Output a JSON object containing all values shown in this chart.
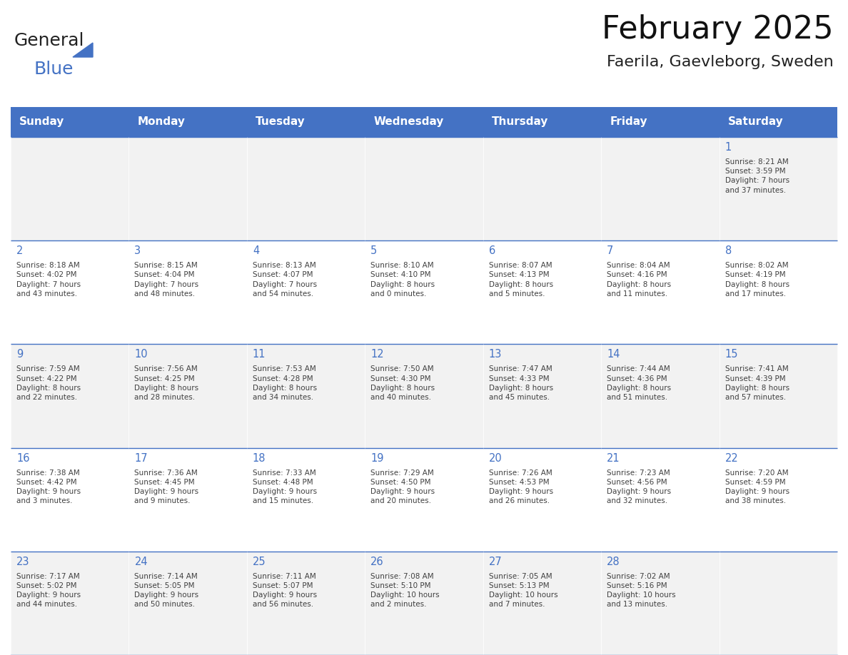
{
  "title": "February 2025",
  "subtitle": "Faerila, Gaevleborg, Sweden",
  "header_color": "#4472C4",
  "header_text_color": "#FFFFFF",
  "header_days": [
    "Sunday",
    "Monday",
    "Tuesday",
    "Wednesday",
    "Thursday",
    "Friday",
    "Saturday"
  ],
  "bg_color": "#FFFFFF",
  "cell_bg_even": "#F2F2F2",
  "cell_bg_odd": "#FFFFFF",
  "line_color": "#4472C4",
  "day_number_color": "#4472C4",
  "text_color": "#404040",
  "logo_general_color": "#222222",
  "logo_blue_color": "#4472C4",
  "weeks": [
    [
      {
        "day": null,
        "info": null
      },
      {
        "day": null,
        "info": null
      },
      {
        "day": null,
        "info": null
      },
      {
        "day": null,
        "info": null
      },
      {
        "day": null,
        "info": null
      },
      {
        "day": null,
        "info": null
      },
      {
        "day": 1,
        "info": "Sunrise: 8:21 AM\nSunset: 3:59 PM\nDaylight: 7 hours\nand 37 minutes."
      }
    ],
    [
      {
        "day": 2,
        "info": "Sunrise: 8:18 AM\nSunset: 4:02 PM\nDaylight: 7 hours\nand 43 minutes."
      },
      {
        "day": 3,
        "info": "Sunrise: 8:15 AM\nSunset: 4:04 PM\nDaylight: 7 hours\nand 48 minutes."
      },
      {
        "day": 4,
        "info": "Sunrise: 8:13 AM\nSunset: 4:07 PM\nDaylight: 7 hours\nand 54 minutes."
      },
      {
        "day": 5,
        "info": "Sunrise: 8:10 AM\nSunset: 4:10 PM\nDaylight: 8 hours\nand 0 minutes."
      },
      {
        "day": 6,
        "info": "Sunrise: 8:07 AM\nSunset: 4:13 PM\nDaylight: 8 hours\nand 5 minutes."
      },
      {
        "day": 7,
        "info": "Sunrise: 8:04 AM\nSunset: 4:16 PM\nDaylight: 8 hours\nand 11 minutes."
      },
      {
        "day": 8,
        "info": "Sunrise: 8:02 AM\nSunset: 4:19 PM\nDaylight: 8 hours\nand 17 minutes."
      }
    ],
    [
      {
        "day": 9,
        "info": "Sunrise: 7:59 AM\nSunset: 4:22 PM\nDaylight: 8 hours\nand 22 minutes."
      },
      {
        "day": 10,
        "info": "Sunrise: 7:56 AM\nSunset: 4:25 PM\nDaylight: 8 hours\nand 28 minutes."
      },
      {
        "day": 11,
        "info": "Sunrise: 7:53 AM\nSunset: 4:28 PM\nDaylight: 8 hours\nand 34 minutes."
      },
      {
        "day": 12,
        "info": "Sunrise: 7:50 AM\nSunset: 4:30 PM\nDaylight: 8 hours\nand 40 minutes."
      },
      {
        "day": 13,
        "info": "Sunrise: 7:47 AM\nSunset: 4:33 PM\nDaylight: 8 hours\nand 45 minutes."
      },
      {
        "day": 14,
        "info": "Sunrise: 7:44 AM\nSunset: 4:36 PM\nDaylight: 8 hours\nand 51 minutes."
      },
      {
        "day": 15,
        "info": "Sunrise: 7:41 AM\nSunset: 4:39 PM\nDaylight: 8 hours\nand 57 minutes."
      }
    ],
    [
      {
        "day": 16,
        "info": "Sunrise: 7:38 AM\nSunset: 4:42 PM\nDaylight: 9 hours\nand 3 minutes."
      },
      {
        "day": 17,
        "info": "Sunrise: 7:36 AM\nSunset: 4:45 PM\nDaylight: 9 hours\nand 9 minutes."
      },
      {
        "day": 18,
        "info": "Sunrise: 7:33 AM\nSunset: 4:48 PM\nDaylight: 9 hours\nand 15 minutes."
      },
      {
        "day": 19,
        "info": "Sunrise: 7:29 AM\nSunset: 4:50 PM\nDaylight: 9 hours\nand 20 minutes."
      },
      {
        "day": 20,
        "info": "Sunrise: 7:26 AM\nSunset: 4:53 PM\nDaylight: 9 hours\nand 26 minutes."
      },
      {
        "day": 21,
        "info": "Sunrise: 7:23 AM\nSunset: 4:56 PM\nDaylight: 9 hours\nand 32 minutes."
      },
      {
        "day": 22,
        "info": "Sunrise: 7:20 AM\nSunset: 4:59 PM\nDaylight: 9 hours\nand 38 minutes."
      }
    ],
    [
      {
        "day": 23,
        "info": "Sunrise: 7:17 AM\nSunset: 5:02 PM\nDaylight: 9 hours\nand 44 minutes."
      },
      {
        "day": 24,
        "info": "Sunrise: 7:14 AM\nSunset: 5:05 PM\nDaylight: 9 hours\nand 50 minutes."
      },
      {
        "day": 25,
        "info": "Sunrise: 7:11 AM\nSunset: 5:07 PM\nDaylight: 9 hours\nand 56 minutes."
      },
      {
        "day": 26,
        "info": "Sunrise: 7:08 AM\nSunset: 5:10 PM\nDaylight: 10 hours\nand 2 minutes."
      },
      {
        "day": 27,
        "info": "Sunrise: 7:05 AM\nSunset: 5:13 PM\nDaylight: 10 hours\nand 7 minutes."
      },
      {
        "day": 28,
        "info": "Sunrise: 7:02 AM\nSunset: 5:16 PM\nDaylight: 10 hours\nand 13 minutes."
      },
      {
        "day": null,
        "info": null
      }
    ]
  ]
}
